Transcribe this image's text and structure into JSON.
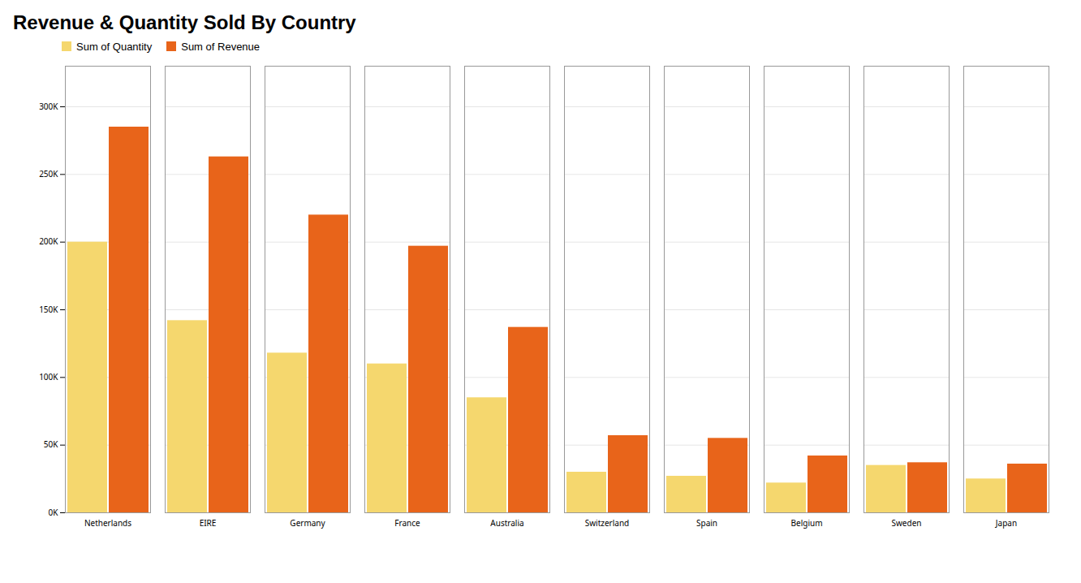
{
  "chart_data": {
    "type": "bar",
    "title": "Revenue & Quantity Sold By Country",
    "categories": [
      "Netherlands",
      "EIRE",
      "Germany",
      "France",
      "Australia",
      "Switzerland",
      "Spain",
      "Belgium",
      "Sweden",
      "Japan"
    ],
    "series": [
      {
        "name": "Sum of Quantity",
        "color": "#F5D76E",
        "values": [
          200000,
          142000,
          118000,
          110000,
          85000,
          30000,
          27000,
          22000,
          35000,
          25000
        ]
      },
      {
        "name": "Sum of Revenue",
        "color": "#E8641A",
        "values": [
          285000,
          263000,
          220000,
          197000,
          137000,
          57000,
          55000,
          42000,
          37000,
          36000
        ]
      }
    ],
    "ylim": [
      0,
      330000
    ],
    "yticks": [
      {
        "value": 0,
        "label": "0K"
      },
      {
        "value": 50000,
        "label": "50K"
      },
      {
        "value": 100000,
        "label": "100K"
      },
      {
        "value": 150000,
        "label": "150K"
      },
      {
        "value": 200000,
        "label": "200K"
      },
      {
        "value": 250000,
        "label": "250K"
      },
      {
        "value": 300000,
        "label": "300K"
      }
    ],
    "grid": true,
    "legend": "upper left"
  }
}
